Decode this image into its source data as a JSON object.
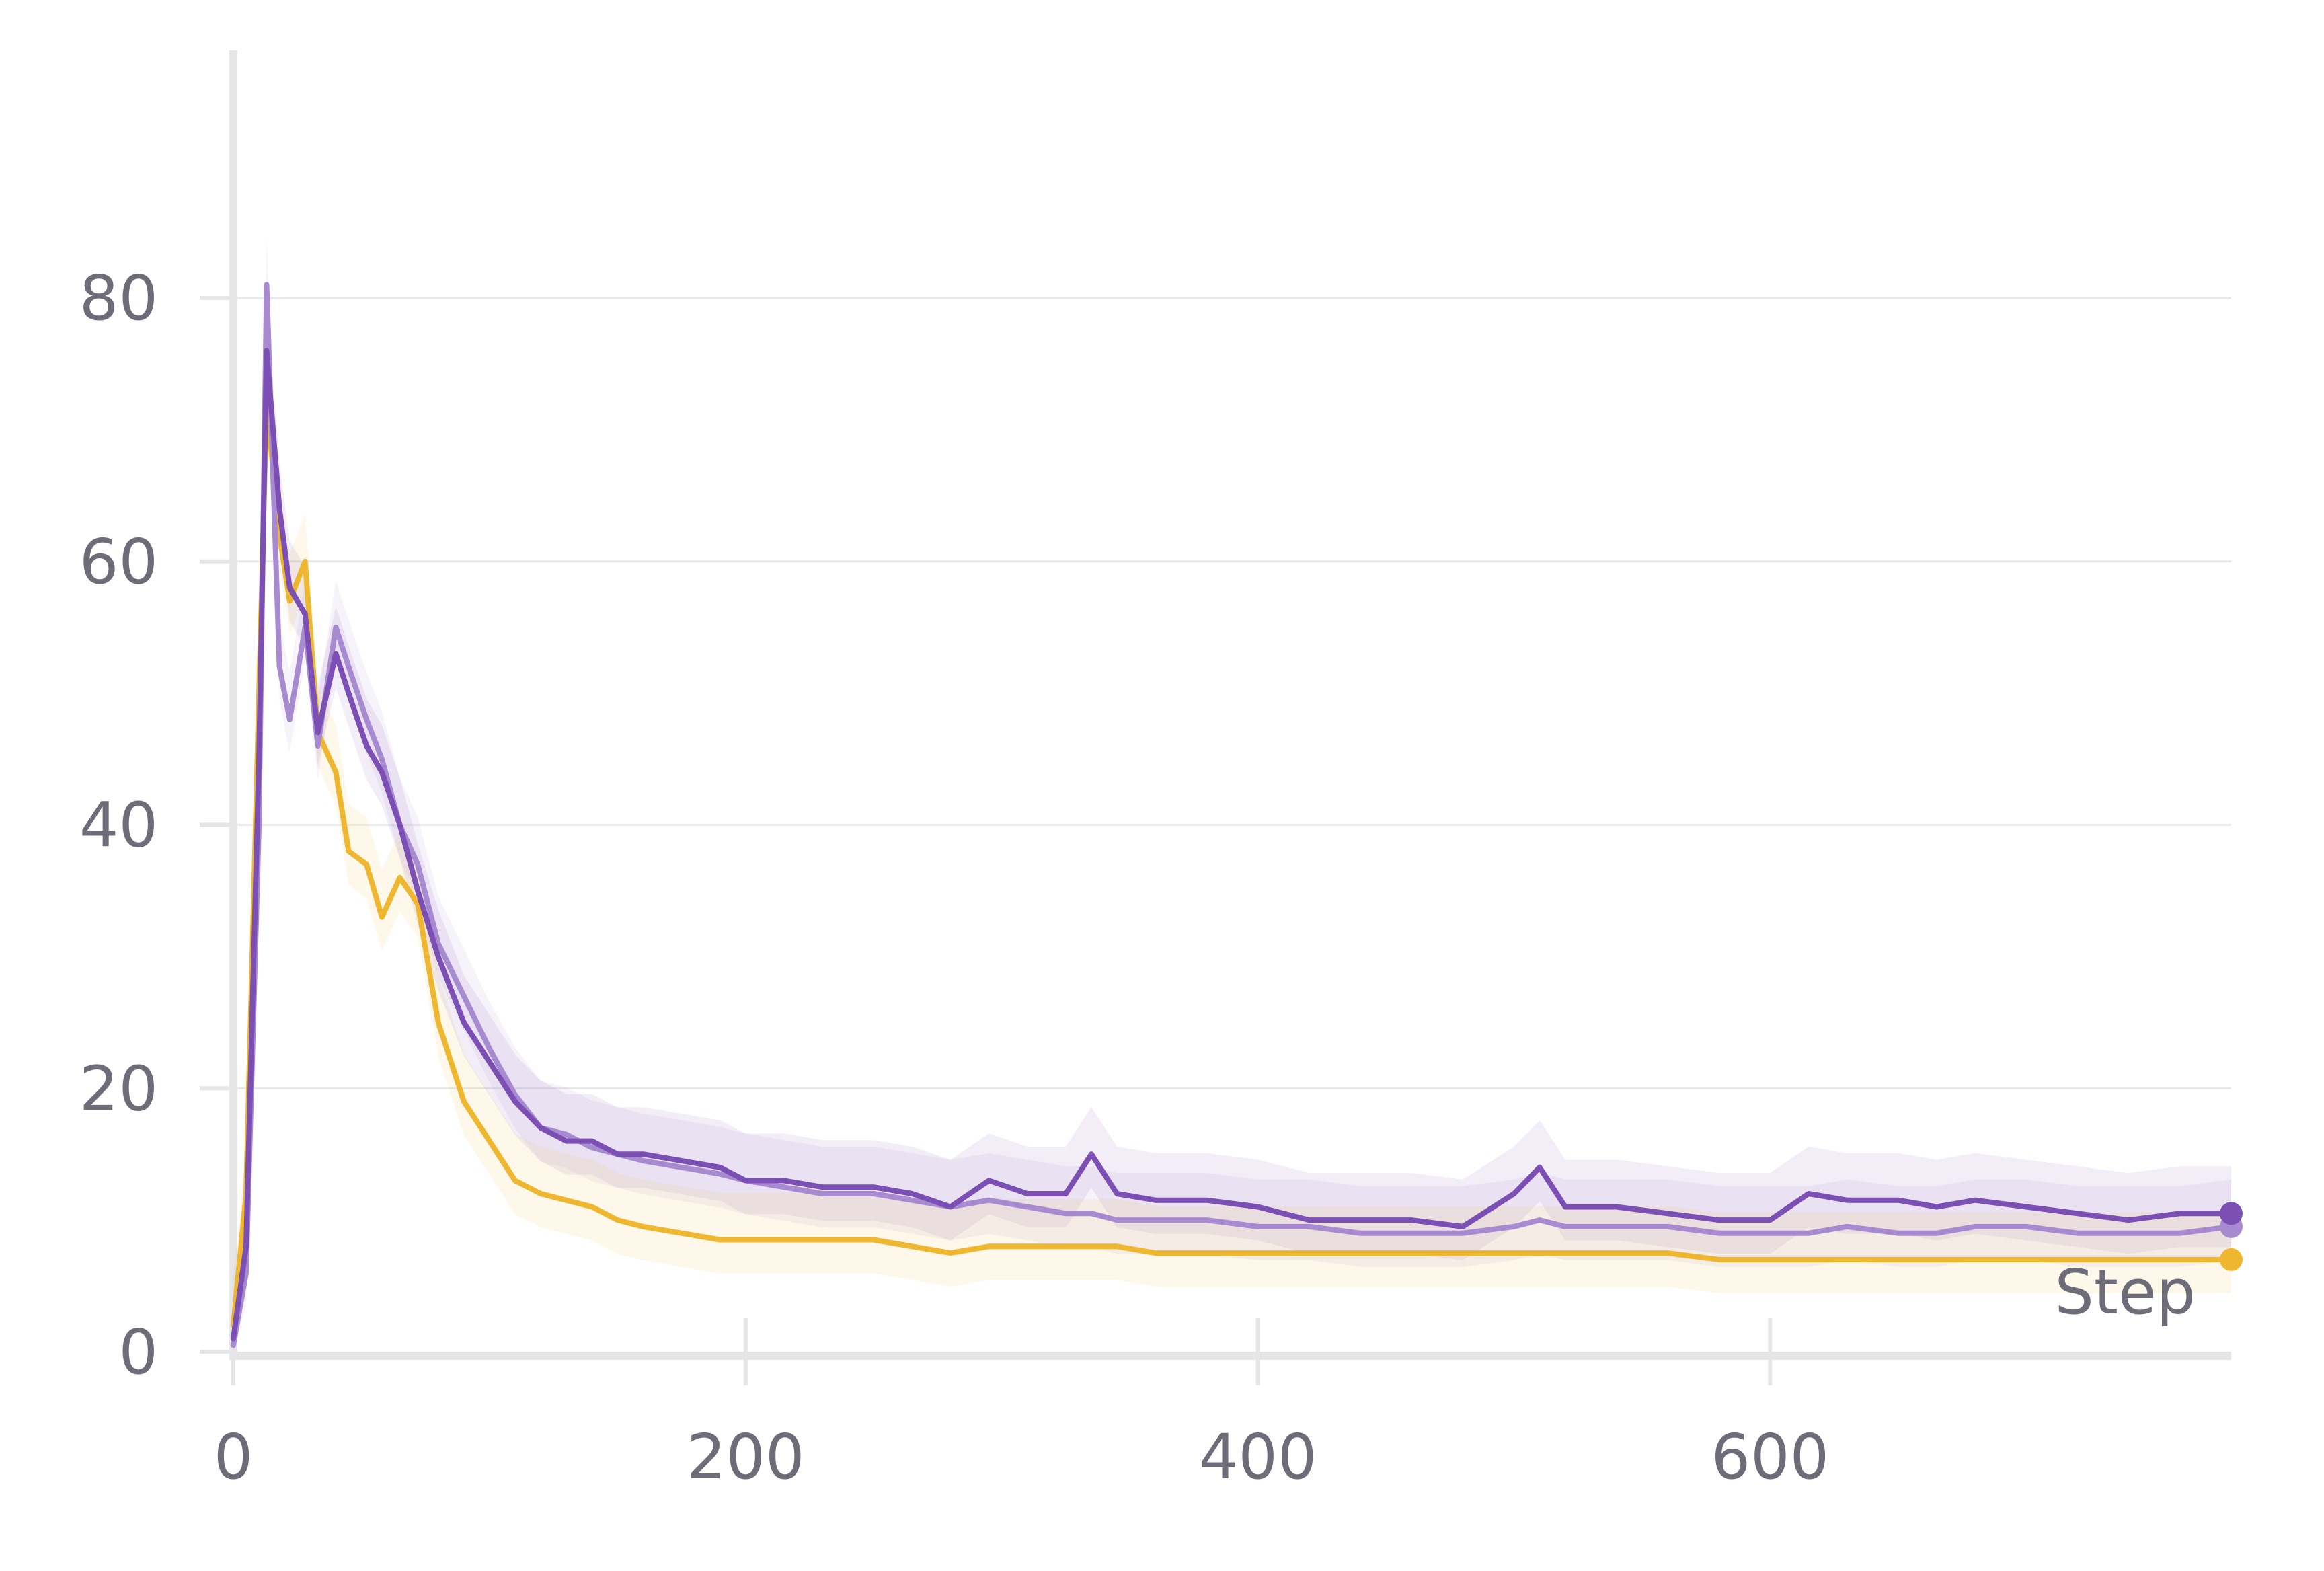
{
  "chart_data": {
    "type": "line",
    "title": "",
    "xlabel": "Step",
    "ylabel": "",
    "xlim": [
      0,
      780
    ],
    "ylim": [
      0,
      95
    ],
    "x_ticks": [
      0,
      200,
      400,
      600
    ],
    "y_ticks": [
      0,
      20,
      40,
      60,
      80
    ],
    "x_tick_labels": [
      "0",
      "200",
      "400",
      "600"
    ],
    "y_tick_labels": [
      "0",
      "20",
      "40",
      "60",
      "80"
    ],
    "grid": "horizontal",
    "legend": "none",
    "colors": {
      "series_1": "#7b4fb4",
      "series_2": "#a78ad0",
      "series_3": "#efb630",
      "axis": "#e6e6e9",
      "grid": "#e9e9ec",
      "tick_text": "#6e6c78"
    },
    "series": [
      {
        "color": "#7b4fb4",
        "x": [
          0,
          5,
          10,
          13,
          18,
          22,
          28,
          33,
          40,
          45,
          52,
          58,
          65,
          72,
          80,
          90,
          100,
          110,
          120,
          130,
          140,
          150,
          160,
          175,
          190,
          200,
          215,
          230,
          250,
          265,
          280,
          295,
          310,
          325,
          335,
          345,
          360,
          380,
          400,
          420,
          440,
          460,
          480,
          500,
          510,
          520,
          540,
          560,
          580,
          600,
          615,
          630,
          650,
          665,
          680,
          700,
          720,
          740,
          760,
          780
        ],
        "y": [
          1,
          8,
          45,
          76,
          64,
          58,
          56,
          47,
          53,
          50,
          46,
          44,
          40,
          35,
          30,
          25,
          22,
          19,
          17,
          16,
          16,
          15,
          15,
          14.5,
          14,
          13,
          13,
          12.5,
          12.5,
          12,
          11,
          13,
          12,
          12,
          15,
          12,
          11.5,
          11.5,
          11,
          10,
          10,
          10,
          9.5,
          12,
          14,
          11,
          11,
          10.5,
          10,
          10,
          12,
          11.5,
          11.5,
          11,
          11.5,
          11,
          10.5,
          10,
          10.5,
          10.5
        ]
      },
      {
        "color": "#a78ad0",
        "x": [
          0,
          5,
          10,
          13,
          18,
          22,
          28,
          33,
          40,
          45,
          52,
          58,
          65,
          72,
          80,
          90,
          100,
          110,
          120,
          130,
          140,
          150,
          160,
          175,
          190,
          200,
          215,
          230,
          250,
          265,
          280,
          295,
          310,
          325,
          335,
          345,
          360,
          380,
          400,
          420,
          440,
          460,
          480,
          500,
          510,
          520,
          540,
          560,
          580,
          600,
          615,
          630,
          650,
          665,
          680,
          700,
          720,
          740,
          760,
          780
        ],
        "y": [
          0.5,
          6,
          40,
          81,
          52,
          48,
          55,
          46,
          55,
          52,
          48,
          45,
          40,
          37,
          31,
          27,
          23,
          19.5,
          17,
          16.5,
          15.5,
          15,
          14.5,
          14,
          13.5,
          13,
          12.5,
          12,
          12,
          11.5,
          11,
          11.5,
          11,
          10.5,
          10.5,
          10,
          10,
          10,
          9.5,
          9.5,
          9,
          9,
          9,
          9.5,
          10,
          9.5,
          9.5,
          9.5,
          9,
          9,
          9,
          9.5,
          9,
          9,
          9.5,
          9.5,
          9,
          9,
          9,
          9.5
        ]
      },
      {
        "color": "#efb630",
        "x": [
          0,
          5,
          10,
          13,
          18,
          22,
          28,
          33,
          40,
          45,
          52,
          58,
          65,
          72,
          80,
          90,
          100,
          110,
          120,
          130,
          140,
          150,
          160,
          175,
          190,
          200,
          215,
          230,
          250,
          265,
          280,
          295,
          310,
          325,
          335,
          345,
          360,
          380,
          400,
          420,
          440,
          460,
          480,
          500,
          510,
          520,
          540,
          560,
          580,
          600,
          615,
          630,
          650,
          665,
          680,
          700,
          720,
          740,
          760,
          780
        ],
        "y": [
          2,
          12,
          50,
          72,
          62,
          57,
          60,
          47,
          44,
          38,
          37,
          33,
          36,
          34,
          25,
          19,
          16,
          13,
          12,
          11.5,
          11,
          10,
          9.5,
          9,
          8.5,
          8.5,
          8.5,
          8.5,
          8.5,
          8,
          7.5,
          8,
          8,
          8,
          8,
          8,
          7.5,
          7.5,
          7.5,
          7.5,
          7.5,
          7.5,
          7.5,
          7.5,
          7.5,
          7.5,
          7.5,
          7.5,
          7,
          7,
          7,
          7,
          7,
          7,
          7,
          7,
          7,
          7,
          7,
          7
        ]
      }
    ]
  }
}
